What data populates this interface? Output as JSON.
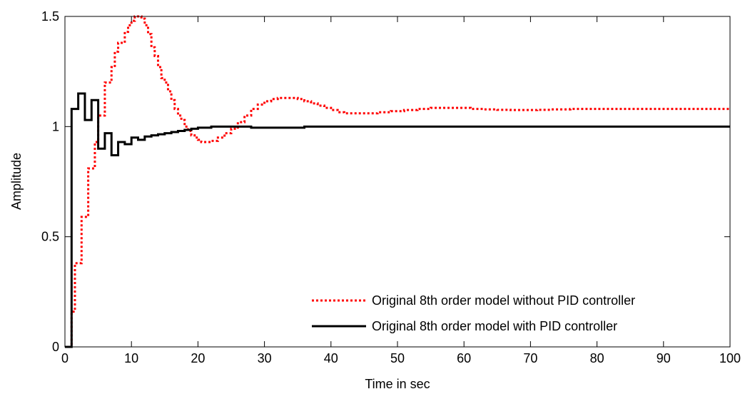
{
  "chart_data": {
    "type": "line",
    "title": "",
    "xlabel": "Time in sec",
    "ylabel": "Amplitude",
    "xlim": [
      0,
      100
    ],
    "ylim": [
      0,
      1.5
    ],
    "xticks": [
      0,
      10,
      20,
      30,
      40,
      50,
      60,
      70,
      80,
      90,
      100
    ],
    "xtick_labels": [
      "0",
      "10",
      "20",
      "30",
      "40",
      "50",
      "60",
      "70",
      "80",
      "90",
      "100"
    ],
    "yticks": [
      0,
      0.5,
      1,
      1.5
    ],
    "ytick_labels": [
      "0",
      "0.5",
      "1",
      "1.5"
    ],
    "grid": false,
    "legend_position": "bottom-right",
    "step": true,
    "series": [
      {
        "name": "Original 8th order model without PID controller",
        "color": "#ff0000",
        "style": "dotted",
        "x": [
          0,
          1,
          1.5,
          2,
          2.5,
          3,
          3.5,
          4,
          4.5,
          5,
          5.5,
          6,
          6.5,
          7,
          7.5,
          8,
          8.5,
          9,
          9.5,
          10,
          10.5,
          11,
          11.5,
          12,
          12.5,
          13,
          13.5,
          14,
          14.5,
          15,
          15.5,
          16,
          16.5,
          17,
          17.5,
          18,
          18.5,
          19,
          19.5,
          20,
          20.5,
          21,
          22,
          23,
          24,
          25,
          26,
          27,
          28,
          29,
          30,
          31,
          32,
          33,
          34,
          35,
          36,
          37,
          38,
          39,
          40,
          41,
          42,
          43,
          45,
          47,
          49,
          51,
          53,
          55,
          57,
          59,
          61,
          63,
          65,
          67,
          69,
          71,
          73,
          76,
          80,
          85,
          90,
          95,
          100
        ],
        "y": [
          0,
          0.16,
          0.38,
          0.38,
          0.59,
          0.59,
          0.81,
          0.81,
          0.93,
          1.05,
          1.05,
          1.2,
          1.2,
          1.27,
          1.34,
          1.38,
          1.38,
          1.43,
          1.46,
          1.48,
          1.5,
          1.5,
          1.49,
          1.46,
          1.42,
          1.36,
          1.32,
          1.27,
          1.22,
          1.2,
          1.16,
          1.12,
          1.08,
          1.05,
          1.03,
          1.0,
          0.98,
          0.96,
          0.95,
          0.94,
          0.93,
          0.93,
          0.935,
          0.95,
          0.97,
          0.99,
          1.02,
          1.05,
          1.08,
          1.1,
          1.115,
          1.125,
          1.13,
          1.13,
          1.13,
          1.125,
          1.115,
          1.105,
          1.095,
          1.085,
          1.075,
          1.065,
          1.06,
          1.06,
          1.06,
          1.065,
          1.07,
          1.075,
          1.08,
          1.085,
          1.085,
          1.085,
          1.08,
          1.078,
          1.076,
          1.075,
          1.075,
          1.076,
          1.078,
          1.08,
          1.08,
          1.08,
          1.08,
          1.08,
          1.08
        ]
      },
      {
        "name": "Original 8th order model with PID controller",
        "color": "#000000",
        "style": "solid",
        "x": [
          0,
          1,
          1.5,
          2,
          2.5,
          3,
          3.5,
          4,
          5,
          6,
          7,
          8,
          9,
          10,
          11,
          12,
          13,
          14,
          15,
          16,
          17,
          18,
          19,
          20,
          22,
          25,
          28,
          31,
          36,
          45,
          60,
          80,
          100
        ],
        "y": [
          0,
          1.08,
          1.08,
          1.15,
          1.15,
          1.03,
          1.03,
          1.12,
          0.9,
          0.97,
          0.87,
          0.93,
          0.92,
          0.95,
          0.94,
          0.955,
          0.96,
          0.965,
          0.97,
          0.975,
          0.98,
          0.985,
          0.99,
          0.995,
          1.0,
          1.0,
          0.995,
          0.995,
          1.0,
          1.0,
          1.0,
          1.0,
          1.0
        ]
      }
    ]
  }
}
